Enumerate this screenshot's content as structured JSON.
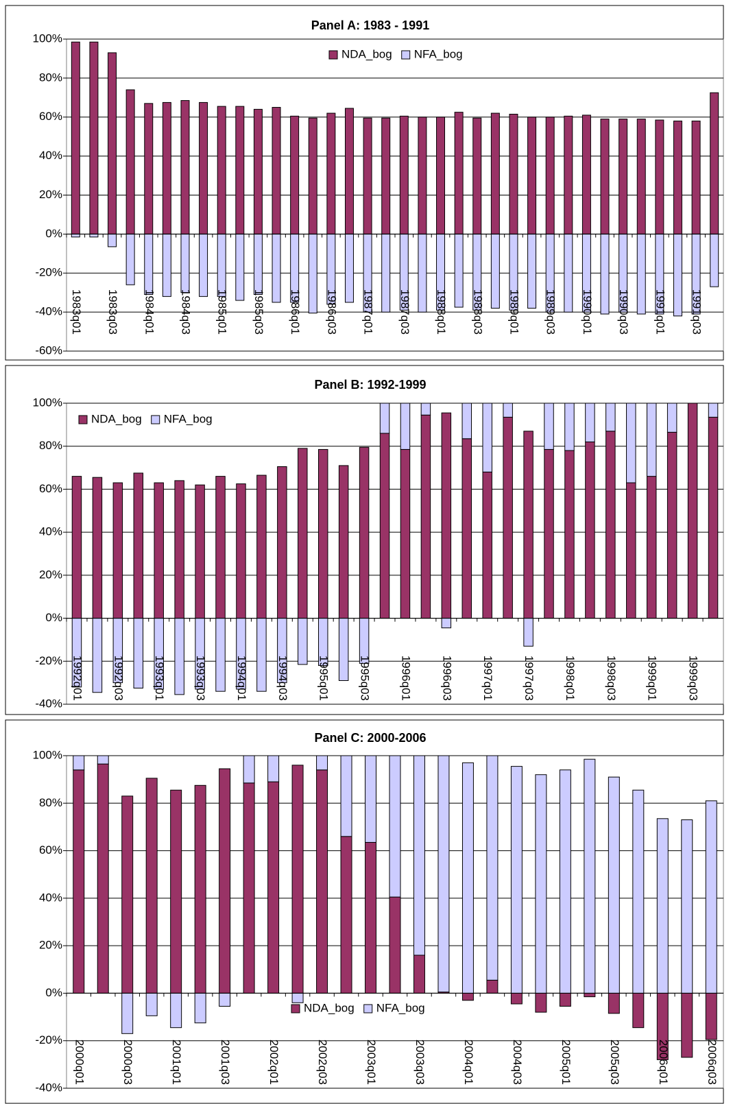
{
  "chart_data": [
    {
      "type": "bar",
      "stacked": true,
      "title": "Panel A: 1983 - 1991",
      "categories": [
        "1983q01",
        null,
        "1983q03",
        null,
        "1984q01",
        null,
        "1984q03",
        null,
        "1985q01",
        null,
        "1985q03",
        null,
        "1986q01",
        null,
        "1986q03",
        null,
        "1987q01",
        null,
        "1987q03",
        null,
        "1988q01",
        null,
        "1988q03",
        null,
        "1989q01",
        null,
        "1989q03",
        null,
        "1990q01",
        null,
        "1990q03",
        null,
        "1991q01",
        null,
        "1991q03",
        null
      ],
      "series": [
        {
          "name": "NDA_bog",
          "color": "#993366",
          "values": [
            98.5,
            98.5,
            93,
            74,
            67,
            67.5,
            68.5,
            67.5,
            65.5,
            65.5,
            64,
            65,
            60.5,
            59.5,
            62,
            64.5,
            59.5,
            59.5,
            60.5,
            60,
            60,
            62.5,
            59.5,
            62,
            61.5,
            60,
            60,
            60.5,
            61,
            59,
            59,
            59,
            58.5,
            58,
            58,
            72.5
          ]
        },
        {
          "name": "NFA_bog",
          "color": "#ccccff",
          "values": [
            -1.5,
            -1.5,
            -6.5,
            -26,
            -31,
            -32,
            -30,
            -32,
            -32,
            -34,
            -31,
            -35,
            -35,
            -40.5,
            -36,
            -35,
            -40,
            -40,
            -39,
            -40,
            -39,
            -37.5,
            -39,
            -38,
            -39,
            -38,
            -40,
            -40,
            -40,
            -41,
            -40,
            -41,
            -41,
            -42,
            -41,
            -27
          ]
        }
      ],
      "ylim": [
        -60,
        100
      ],
      "yticks": [
        {
          "value": -60,
          "label": "-60%"
        },
        {
          "value": -40,
          "label": "-40%"
        },
        {
          "value": -20,
          "label": "-20%"
        },
        {
          "value": 0,
          "label": "0%"
        },
        {
          "value": 20,
          "label": "20%"
        },
        {
          "value": 40,
          "label": "40%"
        },
        {
          "value": 60,
          "label": "60%"
        },
        {
          "value": 80,
          "label": "80%"
        },
        {
          "value": 100,
          "label": "100%"
        }
      ],
      "grid": true,
      "legend": "top"
    },
    {
      "type": "bar",
      "stacked": true,
      "title": "Panel B: 1992-1999",
      "categories": [
        "1992q01",
        null,
        "1992q03",
        null,
        "1993q01",
        null,
        "1993q03",
        null,
        "1994q01",
        null,
        "1994q03",
        null,
        "1995q01",
        null,
        "1995q03",
        null,
        "1996q01",
        null,
        "1996q03",
        null,
        "1997q01",
        null,
        "1997q03",
        null,
        "1998q01",
        null,
        "1998q03",
        null,
        "1999q01",
        null,
        "1999q03",
        null
      ],
      "series": [
        {
          "name": "NDA_bog",
          "color": "#993366",
          "values": [
            66,
            65.5,
            63,
            67.5,
            63,
            64,
            62,
            66,
            62.5,
            66.5,
            70.5,
            79,
            78.5,
            71,
            79.5,
            86,
            78.5,
            94.5,
            95.5,
            83.5,
            68,
            93.5,
            87,
            78.5,
            78,
            82,
            87,
            63,
            66,
            86.5,
            100,
            93.5
          ]
        },
        {
          "name": "NFA_bog",
          "color": "#ccccff",
          "values": [
            -32,
            -34.5,
            -30,
            -32.5,
            -33,
            -35.5,
            -33,
            -34,
            -33,
            -34,
            -30,
            -21.5,
            -22,
            -29,
            -21,
            14,
            21.5,
            5.5,
            -4.5,
            16.5,
            32,
            6.5,
            -13,
            21.5,
            22,
            18,
            13,
            37,
            34,
            13.5,
            0,
            6.5
          ]
        }
      ],
      "ylim": [
        -40,
        100
      ],
      "yticks": [
        {
          "value": -40,
          "label": "-40%"
        },
        {
          "value": -20,
          "label": "-20%"
        },
        {
          "value": 0,
          "label": "0%"
        },
        {
          "value": 20,
          "label": "20%"
        },
        {
          "value": 40,
          "label": "40%"
        },
        {
          "value": 60,
          "label": "60%"
        },
        {
          "value": 80,
          "label": "80%"
        },
        {
          "value": 100,
          "label": "100%"
        }
      ],
      "grid": true,
      "legend": "top-left"
    },
    {
      "type": "bar",
      "stacked": true,
      "title": "Panel C: 2000-2006",
      "categories": [
        "2000q01",
        null,
        "2000q03",
        null,
        "2001q01",
        null,
        "2001q03",
        null,
        "2002q01",
        null,
        "2002q03",
        null,
        "2003q01",
        null,
        "2003q03",
        null,
        "2004q01",
        null,
        "2004q03",
        null,
        "2005q01",
        null,
        "2005q03",
        null,
        "2006q01",
        null,
        "2006q03"
      ],
      "series": [
        {
          "name": "NDA_bog",
          "color": "#993366",
          "values": [
            94,
            96.5,
            83,
            90.5,
            85.5,
            87.5,
            94.5,
            88.5,
            89,
            96,
            94,
            66,
            63.5,
            40.5,
            16,
            0.5,
            -3,
            5.5,
            -4.5,
            -8,
            -5.5,
            -1.5,
            -8.5,
            -14.5,
            -28,
            -27,
            -19.5
          ]
        },
        {
          "name": "NFA_bog",
          "color": "#ccccff",
          "values": [
            6,
            3.5,
            -17,
            -9.5,
            -14.5,
            -12.5,
            -5.5,
            11.5,
            11,
            -4,
            6,
            34,
            36.5,
            59.5,
            84,
            99.5,
            97,
            94.5,
            95.5,
            92,
            94,
            98.5,
            91,
            85.5,
            73.5,
            73,
            81
          ]
        }
      ],
      "ylim": [
        -40,
        100
      ],
      "yticks": [
        {
          "value": -40,
          "label": "-40%"
        },
        {
          "value": -20,
          "label": "-20%"
        },
        {
          "value": 0,
          "label": "0%"
        },
        {
          "value": 20,
          "label": "20%"
        },
        {
          "value": 40,
          "label": "40%"
        },
        {
          "value": 60,
          "label": "60%"
        },
        {
          "value": 80,
          "label": "80%"
        },
        {
          "value": 100,
          "label": "100%"
        }
      ],
      "grid": true,
      "legend": "bottom"
    }
  ]
}
